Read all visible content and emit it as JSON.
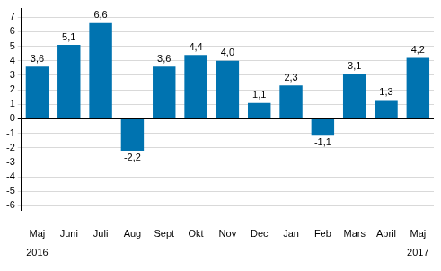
{
  "chart_data": {
    "type": "bar",
    "categories": [
      [
        "Maj",
        "2016"
      ],
      "Juni",
      "Juli",
      "Aug",
      "Sept",
      "Okt",
      "Nov",
      "Dec",
      "Jan",
      "Feb",
      "Mars",
      "April",
      [
        "Maj",
        "2017"
      ]
    ],
    "values": [
      3.6,
      5.1,
      6.6,
      -2.2,
      3.6,
      4.4,
      4.0,
      1.1,
      2.3,
      -1.1,
      3.1,
      1.3,
      4.2
    ],
    "value_labels": [
      "3,6",
      "5,1",
      "6,6",
      "-2,2",
      "3,6",
      "4,4",
      "4,0",
      "1,1",
      "2,3",
      "-1,1",
      "3,1",
      "1,3",
      "4,2"
    ],
    "data_labels": true,
    "color": "#0073b0",
    "ylim": [
      -6.3,
      7.6
    ],
    "yticks": [
      -6,
      -5,
      -4,
      -3,
      -2,
      -1,
      0,
      1,
      2,
      3,
      4,
      5,
      6,
      7
    ],
    "grid": true
  }
}
